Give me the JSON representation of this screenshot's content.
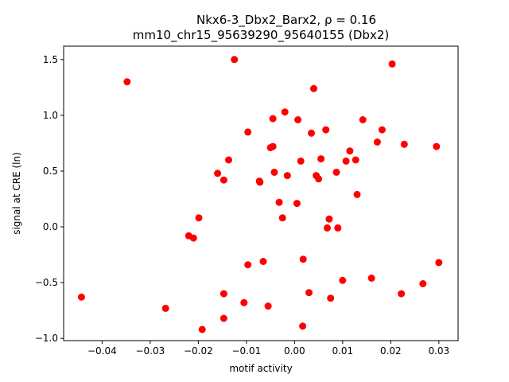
{
  "chart_data": {
    "type": "scatter",
    "title_line1": "Nkx6-3_Dbx2_Barx2, ρ = 0.16",
    "title_line2": "mm10_chr15_95639290_95640155 (Dbx2)",
    "xlabel": "motif activity",
    "ylabel": "signal at CRE (ln)",
    "xlim": [
      -0.048,
      0.034
    ],
    "ylim": [
      -1.02,
      1.62
    ],
    "xticks": [
      -0.04,
      -0.03,
      -0.02,
      -0.01,
      0.0,
      0.01,
      0.02,
      0.03
    ],
    "xtick_labels": [
      "−0.04",
      "−0.03",
      "−0.02",
      "−0.01",
      "0.00",
      "0.01",
      "0.02",
      "0.03"
    ],
    "yticks": [
      -1.0,
      -0.5,
      0.0,
      0.5,
      1.0,
      1.5
    ],
    "ytick_labels": [
      "−1.0",
      "−0.5",
      "0.0",
      "0.5",
      "1.0",
      "1.5"
    ],
    "grid": false,
    "marker_color": "#ff0000",
    "points": [
      {
        "x": -0.0443,
        "y": -0.63
      },
      {
        "x": -0.0348,
        "y": 1.3
      },
      {
        "x": -0.0268,
        "y": -0.73
      },
      {
        "x": -0.022,
        "y": -0.08
      },
      {
        "x": -0.021,
        "y": -0.1
      },
      {
        "x": -0.0199,
        "y": 0.08
      },
      {
        "x": -0.0192,
        "y": -0.92
      },
      {
        "x": -0.016,
        "y": 0.48
      },
      {
        "x": -0.0147,
        "y": 0.42
      },
      {
        "x": -0.0147,
        "y": -0.6
      },
      {
        "x": -0.0147,
        "y": -0.82
      },
      {
        "x": -0.0137,
        "y": 0.6
      },
      {
        "x": -0.0125,
        "y": 1.5
      },
      {
        "x": -0.0105,
        "y": -0.68
      },
      {
        "x": -0.0097,
        "y": 0.85
      },
      {
        "x": -0.0097,
        "y": -0.34
      },
      {
        "x": -0.0073,
        "y": 0.41
      },
      {
        "x": -0.0072,
        "y": 0.4
      },
      {
        "x": -0.0065,
        "y": -0.31
      },
      {
        "x": -0.0055,
        "y": -0.71
      },
      {
        "x": -0.005,
        "y": 0.71
      },
      {
        "x": -0.0045,
        "y": 0.72
      },
      {
        "x": -0.0045,
        "y": 0.97
      },
      {
        "x": -0.0042,
        "y": 0.49
      },
      {
        "x": -0.0032,
        "y": 0.22
      },
      {
        "x": -0.0025,
        "y": 0.08
      },
      {
        "x": -0.002,
        "y": 1.03
      },
      {
        "x": -0.0015,
        "y": 0.46
      },
      {
        "x": 0.0005,
        "y": 0.21
      },
      {
        "x": 0.0007,
        "y": 0.96
      },
      {
        "x": 0.0013,
        "y": 0.59
      },
      {
        "x": 0.0017,
        "y": -0.89
      },
      {
        "x": 0.0018,
        "y": -0.29
      },
      {
        "x": 0.003,
        "y": -0.59
      },
      {
        "x": 0.0035,
        "y": 0.84
      },
      {
        "x": 0.004,
        "y": 1.24
      },
      {
        "x": 0.0045,
        "y": 0.46
      },
      {
        "x": 0.005,
        "y": 0.43
      },
      {
        "x": 0.0055,
        "y": 0.61
      },
      {
        "x": 0.0065,
        "y": 0.87
      },
      {
        "x": 0.0068,
        "y": -0.01
      },
      {
        "x": 0.0072,
        "y": 0.07
      },
      {
        "x": 0.0075,
        "y": -0.64
      },
      {
        "x": 0.0087,
        "y": 0.49
      },
      {
        "x": 0.009,
        "y": -0.01
      },
      {
        "x": 0.01,
        "y": -0.48
      },
      {
        "x": 0.0107,
        "y": 0.59
      },
      {
        "x": 0.0115,
        "y": 0.68
      },
      {
        "x": 0.0127,
        "y": 0.6
      },
      {
        "x": 0.013,
        "y": 0.29
      },
      {
        "x": 0.0142,
        "y": 0.96
      },
      {
        "x": 0.016,
        "y": -0.46
      },
      {
        "x": 0.0172,
        "y": 0.76
      },
      {
        "x": 0.0182,
        "y": 0.87
      },
      {
        "x": 0.0203,
        "y": 1.46
      },
      {
        "x": 0.0222,
        "y": -0.6
      },
      {
        "x": 0.0228,
        "y": 0.74
      },
      {
        "x": 0.0267,
        "y": -0.51
      },
      {
        "x": 0.0295,
        "y": 0.72
      },
      {
        "x": 0.03,
        "y": -0.32
      }
    ]
  }
}
